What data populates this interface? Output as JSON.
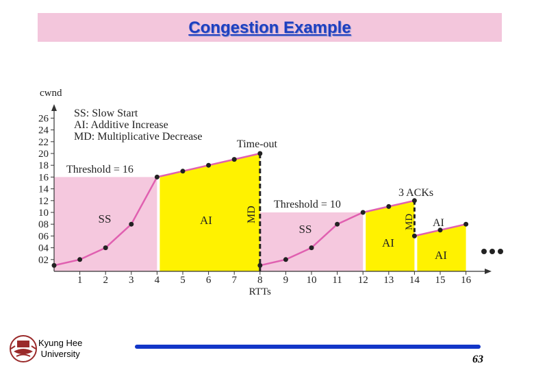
{
  "slide": {
    "title": "Congestion Example",
    "university_line1": "Kyung Hee",
    "university_line2": "University",
    "page_number": "63"
  },
  "chart_data": {
    "type": "line",
    "xlabel": "RTTs",
    "ylabel": "cwnd",
    "xlim": [
      0,
      16
    ],
    "ylim": [
      0,
      26
    ],
    "x_ticks": [
      "1",
      "2",
      "3",
      "4",
      "5",
      "6",
      "7",
      "8",
      "9",
      "10",
      "11",
      "12",
      "13",
      "14",
      "15",
      "16"
    ],
    "y_ticks": [
      "02",
      "04",
      "06",
      "08",
      "10",
      "12",
      "14",
      "16",
      "18",
      "20",
      "22",
      "24",
      "26"
    ],
    "series": [
      {
        "color": "#e060b0",
        "points": [
          [
            0,
            1
          ],
          [
            1,
            2
          ],
          [
            2,
            4
          ],
          [
            3,
            8
          ],
          [
            4,
            16
          ],
          [
            5,
            17
          ],
          [
            6,
            18
          ],
          [
            7,
            19
          ],
          [
            8,
            20
          ],
          [
            8,
            1
          ],
          [
            9,
            2
          ],
          [
            10,
            4
          ],
          [
            11,
            8
          ],
          [
            12,
            10
          ],
          [
            13,
            11
          ],
          [
            14,
            12
          ],
          [
            14,
            6
          ],
          [
            15,
            7
          ],
          [
            16,
            8
          ]
        ]
      }
    ],
    "timeout_x": 8,
    "acks_x": 14,
    "regions": [
      {
        "label": "SS",
        "phase": "slow-start",
        "x0": 0,
        "x1": 4,
        "top": 16,
        "color": "#f5c8de"
      },
      {
        "label": "AI",
        "phase": "additive",
        "x0": 4,
        "x1": 8,
        "y0": 16,
        "y1": 20,
        "color": "#fff200"
      },
      {
        "label": "SS",
        "phase": "slow-start",
        "x0": 8,
        "x1": 12,
        "top": 10,
        "color": "#f5c8de"
      },
      {
        "label": "AI",
        "phase": "additive",
        "x0": 12,
        "x1": 14,
        "y0": 10,
        "y1": 12,
        "color": "#fff200"
      },
      {
        "label": "AI",
        "phase": "additive",
        "x0": 14,
        "x1": 16,
        "y0": 6,
        "y1": 8,
        "color": "#fff200"
      }
    ],
    "labels": {
      "legend_ss": "SS: Slow Start",
      "legend_ai": "AI: Additive Increase",
      "legend_md": "MD: Multiplicative Decrease",
      "threshold1": "Threshold = 16",
      "threshold2": "Threshold = 10",
      "timeout": "Time-out",
      "acks": "3 ACKs",
      "md": "MD",
      "ai_small": "AI"
    }
  }
}
